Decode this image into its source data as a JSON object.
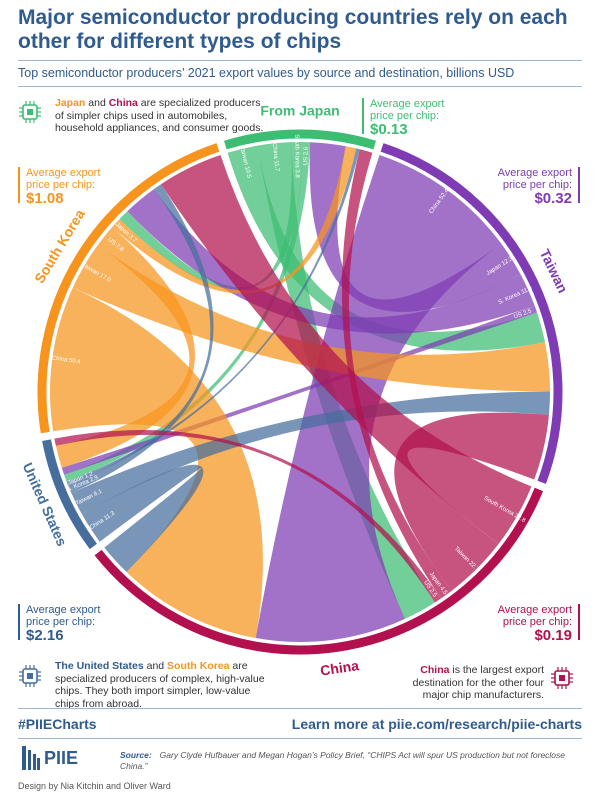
{
  "header": {
    "title": "Major semiconductor producing countries rely on each other for different types of chips",
    "subtitle": "Top semiconductor producers’ 2021 export values by source and destination, billions USD"
  },
  "notes": {
    "top_left_a": "Japan",
    "top_left_and": " and ",
    "top_left_b": "China",
    "top_left_rest": " are specialized producers of simpler chips used in automobiles, household appliances, and consumer goods.",
    "bottom_left_a": "The United States",
    "bottom_left_and": " and ",
    "bottom_left_b": "South Korea",
    "bottom_left_rest": " are specialized producers of complex, high-value chips. They both import simpler, low-value chips from abroad.",
    "bottom_right_a": "China",
    "bottom_right_rest": " is the largest export destination for the other four major chip manufacturers."
  },
  "prices": {
    "label": "Average export price per chip:",
    "japan": "$0.13",
    "taiwan": "$0.32",
    "south_korea": "$1.08",
    "us": "$2.16",
    "china": "$0.19"
  },
  "colors": {
    "japan": "#3dbd72",
    "taiwan": "#7e3bb3",
    "south_korea": "#f7941d",
    "us": "#456e9c",
    "china": "#b2104e",
    "title": "#2f5b8f"
  },
  "footer": {
    "hashtag": "#PIIECharts",
    "link": "Learn more at piie.com/research/piie-charts",
    "logo": "PIIE",
    "source_label": "Source:",
    "source": "Gary Clyde Hufbauer and Megan Hogan’s Policy Brief, “CHIPS Act will spur US production but not foreclose China.”",
    "design": "Design by Nia Kitchin and Oliver Ward"
  },
  "chart_data": {
    "type": "chord",
    "nodes": [
      {
        "id": "japan",
        "label": "From Japan"
      },
      {
        "id": "taiwan",
        "label": "Taiwan"
      },
      {
        "id": "china",
        "label": "China"
      },
      {
        "id": "us",
        "label": "United States"
      },
      {
        "id": "south_korea",
        "label": "South Korea"
      }
    ],
    "flows": [
      {
        "source": "japan",
        "target": "taiwan",
        "value": 10.5,
        "label": "Taiwan",
        "value_label": "10.5"
      },
      {
        "source": "japan",
        "target": "china",
        "value": 11.7,
        "label": "China",
        "value_label": "11.7"
      },
      {
        "source": "japan",
        "target": "south_korea",
        "value": 3.8,
        "label": "South Korea",
        "value_label": "3.8"
      },
      {
        "source": "japan",
        "target": "us",
        "value": 2.6,
        "label": "US",
        "value_label": "2.6"
      },
      {
        "source": "taiwan",
        "target": "china",
        "value": 52.4,
        "label": "China",
        "value_label": "52.4"
      },
      {
        "source": "taiwan",
        "target": "japan",
        "value": 12.3,
        "label": "Japan",
        "value_label": "12.3"
      },
      {
        "source": "taiwan",
        "target": "south_korea",
        "value": 11.9,
        "label": "S. Korea",
        "value_label": "11.9"
      },
      {
        "source": "taiwan",
        "target": "us",
        "value": 2.5,
        "label": "US",
        "value_label": "2.5"
      },
      {
        "source": "south_korea",
        "target": "china",
        "value": 50.4,
        "label": "China",
        "value_label": "50.4"
      },
      {
        "source": "south_korea",
        "target": "taiwan",
        "value": 17.0,
        "label": "Taiwan",
        "value_label": "17.0"
      },
      {
        "source": "south_korea",
        "target": "us",
        "value": 7.8,
        "label": "US",
        "value_label": "7.8"
      },
      {
        "source": "south_korea",
        "target": "japan",
        "value": 3.7,
        "label": "Japan",
        "value_label": "3.7"
      },
      {
        "source": "us",
        "target": "china",
        "value": 11.3,
        "label": "China",
        "value_label": "11.3"
      },
      {
        "source": "us",
        "target": "taiwan",
        "value": 8.1,
        "label": "Taiwan",
        "value_label": "8.1"
      },
      {
        "source": "us",
        "target": "south_korea",
        "value": 2.9,
        "label": "S. Korea",
        "value_label": "2.9"
      },
      {
        "source": "us",
        "target": "japan",
        "value": 1.2,
        "label": "Japan",
        "value_label": "1.2"
      },
      {
        "source": "china",
        "target": "south_korea",
        "value": 22.8,
        "label": "South Korea",
        "value_label": "22.8"
      },
      {
        "source": "china",
        "target": "taiwan",
        "value": 22.7,
        "label": "Taiwan",
        "value_label": "22.7"
      },
      {
        "source": "china",
        "target": "japan",
        "value": 4.5,
        "label": "Japan",
        "value_label": "4.5"
      },
      {
        "source": "china",
        "target": "us",
        "value": 2.5,
        "label": "US",
        "value_label": "2.5"
      }
    ]
  }
}
